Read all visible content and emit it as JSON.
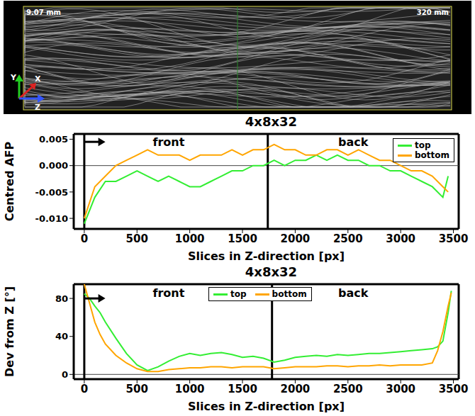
{
  "image": {
    "corner_labels": [
      "9.07 mm",
      "320 mm"
    ],
    "axis_labels": [
      "Y",
      "X",
      "Z"
    ]
  },
  "chart_data": [
    {
      "type": "line",
      "title": "4x8x32",
      "x_label": "Slices in Z-direction [px]",
      "y_label": "Centred AFP",
      "xlim": [
        -100,
        3550
      ],
      "xticks": [
        0,
        500,
        1000,
        1500,
        2000,
        2500,
        3000,
        3500
      ],
      "ylim": [
        -0.012,
        0.006
      ],
      "yticks": [
        {
          "value": -0.01,
          "label": "-0.010"
        },
        {
          "value": -0.005,
          "label": "-0.005"
        },
        {
          "value": 0,
          "label": "0.000"
        },
        {
          "value": 0.005,
          "label": "0.005"
        }
      ],
      "legend": "top-right",
      "vlines": [
        0,
        1740
      ],
      "hlines": [
        0
      ],
      "arrow": {
        "x": [
          0,
          200
        ],
        "y": 0.0045
      },
      "annotations": [
        {
          "text": "front",
          "x": 800,
          "y": 0.0045
        },
        {
          "text": "back",
          "x": 2550,
          "y": 0.0045
        }
      ],
      "x": [
        0,
        100,
        200,
        300,
        400,
        500,
        600,
        700,
        800,
        900,
        1000,
        1100,
        1200,
        1300,
        1400,
        1500,
        1600,
        1700,
        1800,
        1900,
        2000,
        2100,
        2200,
        2300,
        2400,
        2500,
        2600,
        2700,
        2800,
        2900,
        3000,
        3100,
        3200,
        3300,
        3400,
        3450
      ],
      "series": [
        {
          "name": "top",
          "color": "#33ee33",
          "values": [
            -0.011,
            -0.006,
            -0.003,
            -0.003,
            -0.002,
            -0.001,
            -0.002,
            -0.003,
            -0.002,
            -0.003,
            -0.004,
            -0.004,
            -0.003,
            -0.002,
            -0.001,
            -0.001,
            0,
            0,
            0.001,
            0,
            0.001,
            0.001,
            0.002,
            0.001,
            0.002,
            0.001,
            0.001,
            0,
            0,
            -0.001,
            -0.001,
            -0.002,
            -0.003,
            -0.004,
            -0.006,
            -0.002
          ]
        },
        {
          "name": "bottom",
          "color": "#ffa500",
          "values": [
            -0.01,
            -0.004,
            -0.002,
            0,
            0.001,
            0.002,
            0.003,
            0.002,
            0.002,
            0.002,
            0.001,
            0.002,
            0.002,
            0.002,
            0.003,
            0.002,
            0.003,
            0.003,
            0.004,
            0.003,
            0.003,
            0.002,
            0.002,
            0.003,
            0.003,
            0.002,
            0.003,
            0.002,
            0.001,
            0.001,
            0,
            -0.001,
            -0.001,
            -0.002,
            -0.004,
            -0.005
          ]
        }
      ]
    },
    {
      "type": "line",
      "title": "4x8x32",
      "x_label": "Slices in Z-direction [px]",
      "y_label": "Dev from Z [°]",
      "xlim": [
        -100,
        3550
      ],
      "xticks": [
        0,
        500,
        1000,
        1500,
        2000,
        2500,
        3000,
        3500
      ],
      "ylim": [
        -5,
        95
      ],
      "yticks": [
        0,
        40,
        80
      ],
      "legend": "top",
      "vlines": [
        0,
        1780
      ],
      "hlines": [
        0
      ],
      "arrow": {
        "x": [
          0,
          200
        ],
        "y": 80
      },
      "annotations": [
        {
          "text": "front",
          "x": 800,
          "y": 86
        },
        {
          "text": "back",
          "x": 2550,
          "y": 86
        }
      ],
      "x": [
        0,
        50,
        100,
        150,
        200,
        300,
        400,
        500,
        600,
        700,
        800,
        900,
        1000,
        1100,
        1200,
        1300,
        1400,
        1500,
        1600,
        1700,
        1800,
        1900,
        2000,
        2100,
        2200,
        2300,
        2400,
        2500,
        2600,
        2700,
        2800,
        2900,
        3000,
        3100,
        3200,
        3300,
        3350,
        3400,
        3450,
        3480
      ],
      "series": [
        {
          "name": "top",
          "color": "#33ee33",
          "values": [
            85,
            80,
            72,
            65,
            55,
            38,
            22,
            10,
            4,
            8,
            14,
            19,
            22,
            20,
            22,
            23,
            21,
            18,
            19,
            17,
            13,
            15,
            18,
            19,
            20,
            19,
            21,
            20,
            21,
            22,
            22,
            23,
            24,
            25,
            26,
            27,
            29,
            35,
            65,
            88
          ]
        },
        {
          "name": "bottom",
          "color": "#ffa500",
          "values": [
            95,
            75,
            55,
            42,
            32,
            20,
            12,
            6,
            3,
            3,
            5,
            6,
            7,
            7,
            8,
            8,
            7,
            8,
            8,
            8,
            6,
            7,
            8,
            8,
            8,
            9,
            9,
            8,
            9,
            9,
            10,
            9,
            10,
            10,
            10,
            12,
            25,
            45,
            72,
            86
          ]
        }
      ]
    }
  ]
}
